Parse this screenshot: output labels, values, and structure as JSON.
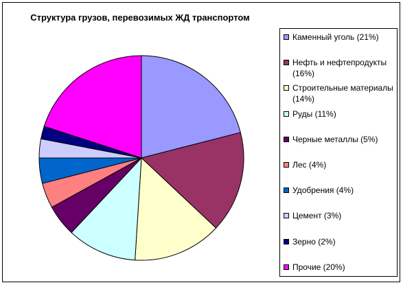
{
  "chart_data": {
    "type": "pie",
    "title": "Структура грузов, перевозимых ЖД транспортом",
    "legend_position": "right",
    "slices": [
      {
        "label": "Каменный уголь (21%)",
        "value": 21,
        "color": "#9999ff"
      },
      {
        "label": "Нефть и нефтепродукты (16%)",
        "value": 16,
        "color": "#993366"
      },
      {
        "label": "Строительные материалы (14%)",
        "value": 14,
        "color": "#ffffcc"
      },
      {
        "label": "Руды (11%)",
        "value": 11,
        "color": "#ccffff"
      },
      {
        "label": "Черные металлы (5%)",
        "value": 5,
        "color": "#660066"
      },
      {
        "label": "Лес (4%)",
        "value": 4,
        "color": "#ff8080"
      },
      {
        "label": "Удобрения (4%)",
        "value": 4,
        "color": "#0066cc"
      },
      {
        "label": "Цемент (3%)",
        "value": 3,
        "color": "#ccccff"
      },
      {
        "label": "Зерно (2%)",
        "value": 2,
        "color": "#000080"
      },
      {
        "label": "Прочие (20%)",
        "value": 20,
        "color": "#ff00ff"
      }
    ]
  }
}
